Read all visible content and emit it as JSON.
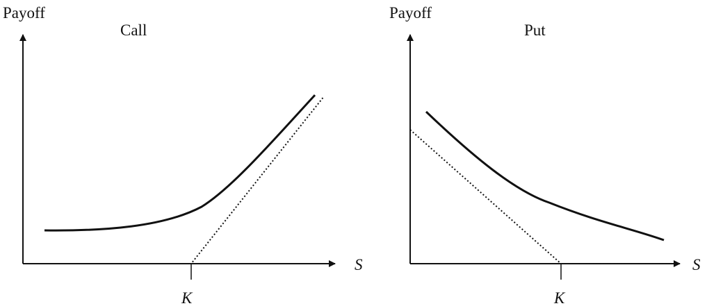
{
  "chart_data": [
    {
      "type": "line",
      "title": "Call",
      "ylabel": "Payoff",
      "xlabel": "S",
      "x_ticks": [
        "K"
      ],
      "grid": false,
      "series": [
        {
          "style": "solid",
          "points": [
            [
              0.13,
              0.75
            ],
            [
              0.3,
              0.75
            ],
            [
              0.45,
              0.81
            ],
            [
              0.5,
              0.89
            ],
            [
              0.55,
              1.06
            ],
            [
              0.6,
              1.37
            ],
            [
              0.7,
              2.1
            ],
            [
              0.88,
              3.4
            ]
          ]
        },
        {
          "style": "dotted",
          "points": [
            [
              0.0,
              0.0
            ],
            [
              0.5,
              0.0
            ],
            [
              0.94,
              3.41
            ]
          ]
        }
      ]
    },
    {
      "type": "line",
      "title": "Put",
      "ylabel": "Payoff",
      "xlabel": "S",
      "x_ticks": [
        "K"
      ],
      "grid": false,
      "series": [
        {
          "style": "solid",
          "points": [
            [
              0.06,
              3.03
            ],
            [
              0.25,
              2.17
            ],
            [
              0.42,
              1.45
            ],
            [
              0.55,
              1.08
            ],
            [
              0.7,
              0.79
            ],
            [
              0.85,
              0.53
            ],
            [
              0.99,
              0.5
            ]
          ]
        },
        {
          "style": "dotted",
          "points": [
            [
              0.0,
              2.64
            ],
            [
              0.6,
              0.0
            ],
            [
              1.0,
              0.0
            ]
          ]
        }
      ]
    }
  ],
  "colors": {
    "curve": "#111111",
    "axis": "#111111"
  }
}
